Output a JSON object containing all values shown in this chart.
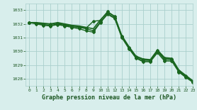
{
  "background_color": "#d8eeec",
  "grid_color": "#aacfcc",
  "line_color": "#1a6620",
  "text_color": "#1a5520",
  "title": "Graphe pression niveau de la mer (hPa)",
  "xlim": [
    -0.5,
    23
  ],
  "ylim": [
    1027.5,
    1033.5
  ],
  "yticks": [
    1028,
    1029,
    1030,
    1031,
    1032,
    1033
  ],
  "xticks": [
    0,
    1,
    2,
    3,
    4,
    5,
    6,
    7,
    8,
    9,
    10,
    11,
    12,
    13,
    14,
    15,
    16,
    17,
    18,
    19,
    20,
    21,
    22,
    23
  ],
  "series": [
    {
      "y": [
        1032.1,
        1032.05,
        1032.0,
        1032.0,
        1032.05,
        1031.95,
        1031.85,
        1031.8,
        1031.7,
        1032.2,
        1032.25,
        1032.9,
        1032.55,
        1031.1,
        1030.3,
        1029.6,
        1029.4,
        1029.35,
        1030.05,
        1029.5,
        1029.45,
        1028.6,
        1028.2,
        1027.8
      ],
      "lw": 1.0,
      "marker": "D",
      "ms": 2.0
    },
    {
      "y": [
        1032.1,
        1032.05,
        1031.95,
        1031.9,
        1032.0,
        1031.9,
        1031.8,
        1031.75,
        1031.65,
        1031.5,
        1032.15,
        1032.75,
        1032.45,
        1031.05,
        1030.25,
        1029.55,
        1029.3,
        1029.3,
        1030.0,
        1029.4,
        1029.4,
        1028.55,
        1028.15,
        1027.8
      ],
      "lw": 1.0,
      "marker": "D",
      "ms": 2.0
    },
    {
      "y": [
        1032.1,
        1032.0,
        1031.9,
        1031.85,
        1031.95,
        1031.85,
        1031.75,
        1031.65,
        1031.5,
        1031.4,
        1032.1,
        1032.7,
        1032.4,
        1031.0,
        1030.2,
        1029.5,
        1029.25,
        1029.25,
        1029.9,
        1029.3,
        1029.3,
        1028.5,
        1028.1,
        1027.75
      ],
      "lw": 1.0,
      "marker": "D",
      "ms": 2.0
    },
    {
      "y": [
        1032.1,
        1032.1,
        1032.05,
        1032.0,
        1032.1,
        1032.0,
        1031.9,
        1031.85,
        1031.75,
        1031.65,
        1032.3,
        1032.85,
        1032.55,
        1031.15,
        1030.35,
        1029.65,
        1029.45,
        1029.4,
        1030.1,
        1029.55,
        1029.5,
        1028.65,
        1028.25,
        1027.85
      ],
      "lw": 1.2,
      "marker": null,
      "ms": 0
    }
  ]
}
